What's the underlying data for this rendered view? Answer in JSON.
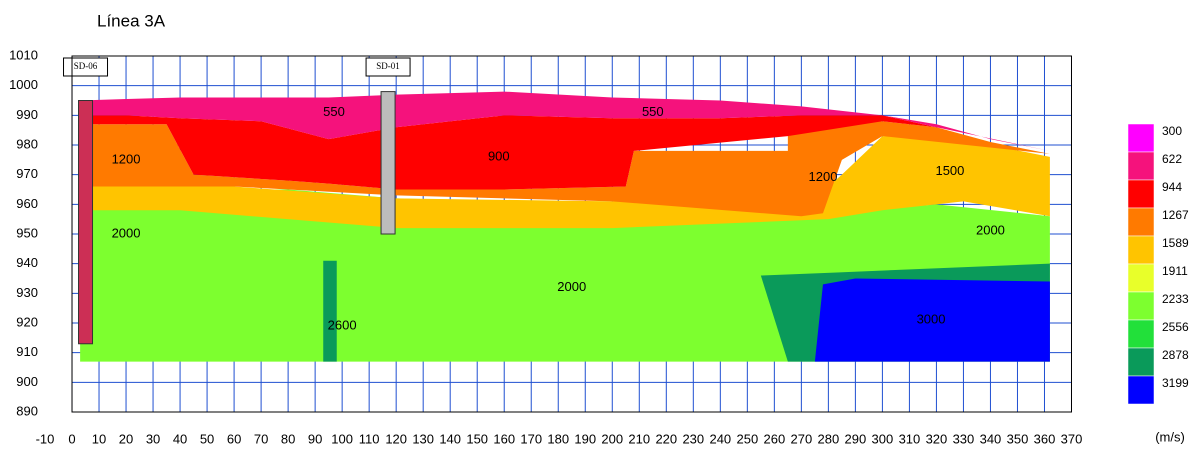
{
  "chart_data": {
    "type": "contour",
    "title": "Línea 3A",
    "xlim": [
      -10,
      375
    ],
    "xticks": [
      -10,
      0,
      10,
      20,
      30,
      40,
      50,
      60,
      70,
      80,
      90,
      100,
      110,
      120,
      130,
      140,
      150,
      160,
      170,
      180,
      190,
      200,
      210,
      220,
      230,
      240,
      250,
      260,
      270,
      280,
      290,
      300,
      310,
      320,
      330,
      340,
      350,
      360,
      370
    ],
    "ylim": [
      890,
      1010
    ],
    "yticks": [
      890,
      900,
      910,
      920,
      930,
      940,
      950,
      960,
      970,
      980,
      990,
      1000,
      1010
    ],
    "grid": true,
    "grid_color": "#1f4fd1",
    "colorbar": {
      "unit": "(m/s)",
      "levels": [
        300,
        622,
        944,
        1267,
        1589,
        1911,
        2233,
        2556,
        2878,
        3199
      ],
      "colors": [
        "#ff00ff",
        "#f5127c",
        "#ff0000",
        "#ff7a00",
        "#ffc400",
        "#e8ff2a",
        "#7dff2f",
        "#22e03a",
        "#0a9a5a",
        "#0000ff"
      ]
    },
    "zones": [
      {
        "velocity": 2000,
        "x": [
          3,
          40,
          80,
          120,
          160,
          200,
          240,
          280,
          320,
          362,
          362,
          3
        ],
        "y": [
          966,
          965,
          965,
          962,
          961,
          961,
          960,
          957,
          960,
          956,
          907,
          907
        ]
      },
      {
        "velocity": 1500,
        "x": [
          3,
          60,
          120,
          200,
          270,
          285,
          300,
          320,
          340,
          362,
          362,
          330,
          300,
          280,
          200,
          120,
          40,
          3
        ],
        "y": [
          966,
          966,
          962,
          961,
          958,
          970,
          983,
          983,
          980,
          976,
          956,
          961,
          958,
          955,
          952,
          952,
          958,
          958
        ]
      },
      {
        "velocity": 1200,
        "x": [
          3,
          35,
          45,
          80,
          95,
          120,
          160,
          205,
          208,
          265,
          265,
          285,
          300,
          320,
          340,
          362,
          300,
          285,
          278,
          270,
          200,
          120,
          60,
          3
        ],
        "y": [
          987,
          987,
          970,
          968,
          967,
          965,
          965,
          966,
          978,
          978,
          983,
          988,
          988,
          986,
          981,
          977,
          983,
          975,
          957,
          956,
          961,
          963,
          966,
          966
        ]
      },
      {
        "velocity": 900,
        "x": [
          3,
          20,
          40,
          70,
          95,
          120,
          160,
          200,
          240,
          270,
          300,
          320,
          300,
          265,
          208,
          205,
          160,
          120,
          95,
          80,
          45,
          35,
          3
        ],
        "y": [
          990,
          990,
          989,
          988,
          982,
          986,
          990,
          989,
          989,
          990,
          990,
          986,
          988,
          983,
          978,
          966,
          965,
          965,
          967,
          968,
          970,
          987,
          987
        ]
      },
      {
        "velocity": 550,
        "x": [
          3,
          20,
          40,
          60,
          80,
          95,
          120,
          160,
          200,
          240,
          270,
          300,
          320,
          340,
          362,
          320,
          300,
          270,
          240,
          200,
          160,
          120,
          95,
          70,
          40,
          20,
          3
        ],
        "y": [
          995,
          995.5,
          996,
          996,
          996,
          996,
          997,
          998,
          996,
          995,
          993,
          990,
          987,
          982,
          978,
          986,
          990,
          990,
          989,
          989,
          990,
          986,
          982,
          988,
          989,
          990,
          990
        ]
      },
      {
        "velocity": 2600,
        "x": [
          93,
          98,
          98,
          93
        ],
        "y": [
          941,
          941,
          907,
          907
        ]
      },
      {
        "velocity": 2600,
        "x": [
          255,
          282,
          362,
          362,
          265
        ],
        "y": [
          936,
          937,
          940,
          907,
          907
        ]
      },
      {
        "velocity": 3000,
        "x": [
          278,
          290,
          362,
          362,
          275
        ],
        "y": [
          933,
          935,
          934,
          907,
          907
        ]
      }
    ],
    "boreholes": [
      {
        "label": "SD-06",
        "x": 5,
        "top": 995,
        "bottom": 913
      },
      {
        "label": "SD-01",
        "x": 117,
        "top": 998,
        "bottom": 950
      }
    ],
    "annotations": [
      {
        "text": "550",
        "x": 97,
        "y": 991
      },
      {
        "text": "550",
        "x": 215,
        "y": 991
      },
      {
        "text": "900",
        "x": 158,
        "y": 976
      },
      {
        "text": "1200",
        "x": 20,
        "y": 975
      },
      {
        "text": "1200",
        "x": 278,
        "y": 969
      },
      {
        "text": "1500",
        "x": 325,
        "y": 971
      },
      {
        "text": "2000",
        "x": 20,
        "y": 950
      },
      {
        "text": "2000",
        "x": 185,
        "y": 932
      },
      {
        "text": "2000",
        "x": 340,
        "y": 951
      },
      {
        "text": "2600",
        "x": 100,
        "y": 919
      },
      {
        "text": "3000",
        "x": 318,
        "y": 921
      }
    ]
  }
}
